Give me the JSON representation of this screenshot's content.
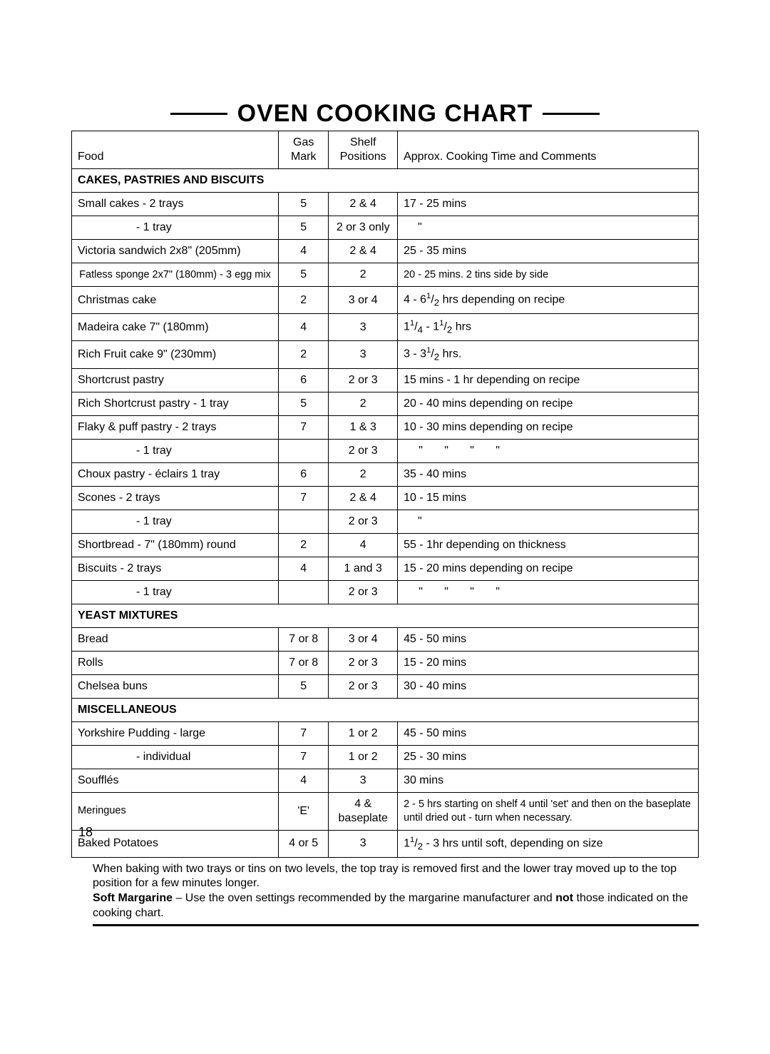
{
  "title": "OVEN COOKING CHART",
  "page_number": "18",
  "columns": {
    "food": "Food",
    "gas": "Gas Mark",
    "shelf": "Shelf Positions",
    "time": "Approx. Cooking Time and Comments"
  },
  "sections": [
    {
      "title": "CAKES, PASTRIES AND BISCUITS",
      "rows": [
        {
          "food": "Small cakes - 2 trays",
          "gas": "5",
          "shelf": "2 & 4",
          "time": "17 - 25 mins"
        },
        {
          "food": "- 1 tray",
          "indent": true,
          "gas": "5",
          "shelf": "2 or 3 only",
          "time": "\"",
          "single_ditto": true
        },
        {
          "food": "Victoria sandwich 2x8\" (205mm)",
          "gas": "4",
          "shelf": "2 & 4",
          "time": "25 - 35 mins"
        },
        {
          "food": "Fatless sponge 2x7\" (180mm) - 3 egg mix",
          "center_food": true,
          "small": true,
          "gas": "5",
          "shelf": "2",
          "time": "20 - 25 mins. 2 tins side by side"
        },
        {
          "food": "Christmas cake",
          "gas": "2",
          "shelf": "3 or 4",
          "time_html": "4 - 6<sup>1</sup>/<sub>2</sub> hrs depending on recipe"
        },
        {
          "food": "Madeira cake 7\" (180mm)",
          "gas": "4",
          "shelf": "3",
          "time_html": "1<sup>1</sup>/<sub>4</sub> - 1<sup>1</sup>/<sub>2</sub> hrs"
        },
        {
          "food": "Rich Fruit cake 9\" (230mm)",
          "gas": "2",
          "shelf": "3",
          "time_html": "3 - 3<sup>1</sup>/<sub>2</sub> hrs."
        },
        {
          "food": "Shortcrust pastry",
          "gas": "6",
          "shelf": "2 or 3",
          "time": "15 mins - 1 hr depending on recipe"
        },
        {
          "food": "Rich Shortcrust pastry - 1 tray",
          "gas": "5",
          "shelf": "2",
          "time": "20 - 40 mins depending on recipe"
        },
        {
          "food": "Flaky & puff pastry - 2 trays",
          "gas": "7",
          "shelf": "1 & 3",
          "time": "10 - 30 mins depending on recipe"
        },
        {
          "food": "- 1 tray",
          "indent": true,
          "gas": "",
          "shelf": "2 or 3",
          "ditto4": true
        },
        {
          "food": "Choux pastry - éclairs 1 tray",
          "gas": "6",
          "shelf": "2",
          "time": "35 - 40 mins"
        },
        {
          "food": "Scones - 2 trays",
          "gas": "7",
          "shelf": "2 & 4",
          "time": "10 - 15 mins"
        },
        {
          "food": "- 1 tray",
          "indent": true,
          "gas": "",
          "shelf": "2 or 3",
          "time": "\"",
          "single_ditto": true
        },
        {
          "food": "Shortbread - 7\" (180mm) round",
          "gas": "2",
          "shelf": "4",
          "time": "55 - 1hr depending on thickness"
        },
        {
          "food": "Biscuits - 2 trays",
          "gas": "4",
          "shelf": "1 and 3",
          "time": "15 - 20 mins depending on recipe"
        },
        {
          "food": "- 1 tray",
          "indent": true,
          "gas": "",
          "shelf": "2 or 3",
          "ditto4": true
        }
      ]
    },
    {
      "title": "YEAST MIXTURES",
      "rows": [
        {
          "food": "Bread",
          "gas": "7 or 8",
          "shelf": "3 or 4",
          "time": "45 - 50 mins"
        },
        {
          "food": "Rolls",
          "gas": "7 or 8",
          "shelf": "2 or 3",
          "time": "15 - 20 mins"
        },
        {
          "food": "Chelsea buns",
          "gas": "5",
          "shelf": "2 or 3",
          "time": "30 - 40 mins"
        }
      ]
    },
    {
      "title": "MISCELLANEOUS",
      "rows": [
        {
          "food": "Yorkshire Pudding - large",
          "gas": "7",
          "shelf": "1 or 2",
          "time": "45 - 50 mins"
        },
        {
          "food": "- individual",
          "indent": true,
          "gas": "7",
          "shelf": "1 or 2",
          "time": "25 - 30 mins"
        },
        {
          "food": "Soufflés",
          "gas": "4",
          "shelf": "3",
          "time": "30 mins"
        },
        {
          "food": "Meringues",
          "gas": "'E'",
          "shelf": "4 & baseplate",
          "small": true,
          "time": "2 - 5 hrs starting on shelf 4 until 'set' and then on the baseplate until dried out  - turn when necessary."
        },
        {
          "food": "Baked Potatoes",
          "gas": "4 or 5",
          "shelf": "3",
          "time_html": "1<sup>1</sup>/<sub>2</sub> - 3 hrs until soft, depending on size"
        }
      ]
    }
  ],
  "footer": {
    "line1": "When baking with two trays or tins on two levels, the top tray is removed first and the lower tray moved up to the top position for a few minutes longer.",
    "line2_bold1": "Soft Margarine",
    "line2_mid": " – Use the oven settings recommended by the margarine manufacturer and ",
    "line2_bold2": "not",
    "line2_end": " those indicated on the cooking chart."
  }
}
